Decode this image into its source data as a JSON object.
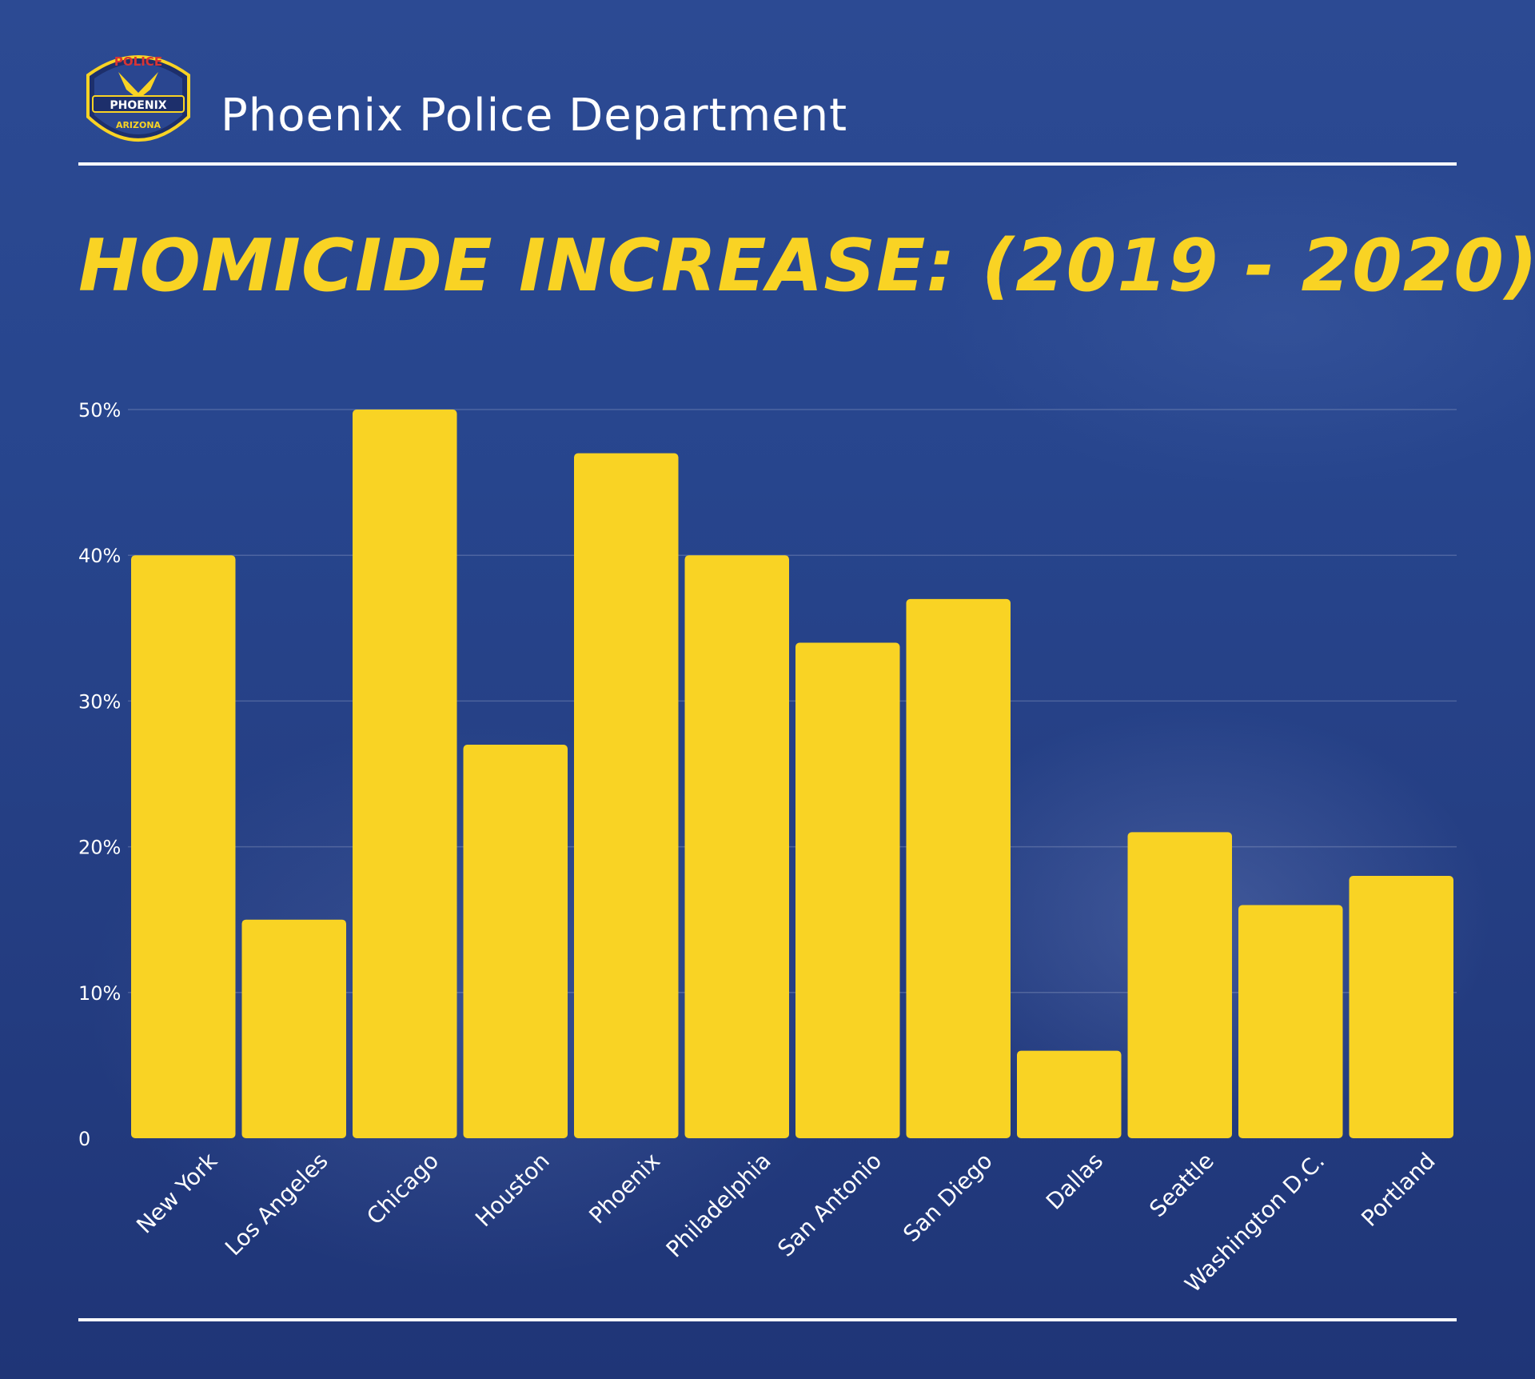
{
  "header": {
    "org_name": "Phoenix Police Department",
    "badge": {
      "top_text": "POLICE",
      "middle_text": "PHOENIX",
      "bottom_text": "ARIZONA"
    }
  },
  "chart_data": {
    "type": "bar",
    "title": "HOMICIDE INCREASE: (2019 - 2020)",
    "categories": [
      "New York",
      "Los Angeles",
      "Chicago",
      "Houston",
      "Phoenix",
      "Philadelphia",
      "San Antonio",
      "San Diego",
      "Dallas",
      "Seattle",
      "Washington D.C.",
      "Portland"
    ],
    "values": [
      40,
      15,
      50,
      27,
      47,
      40,
      34,
      37,
      6,
      21,
      16,
      18
    ],
    "ylim": [
      0,
      50
    ],
    "y_ticks": [
      "0",
      "10%",
      "20%",
      "30%",
      "40%",
      "50%"
    ],
    "xlabel": "",
    "ylabel": "",
    "grid": true,
    "legend": "none"
  },
  "colors": {
    "bar": "#f9d324",
    "title": "#f9d324",
    "background": "#233f86",
    "text": "#ffffff"
  }
}
